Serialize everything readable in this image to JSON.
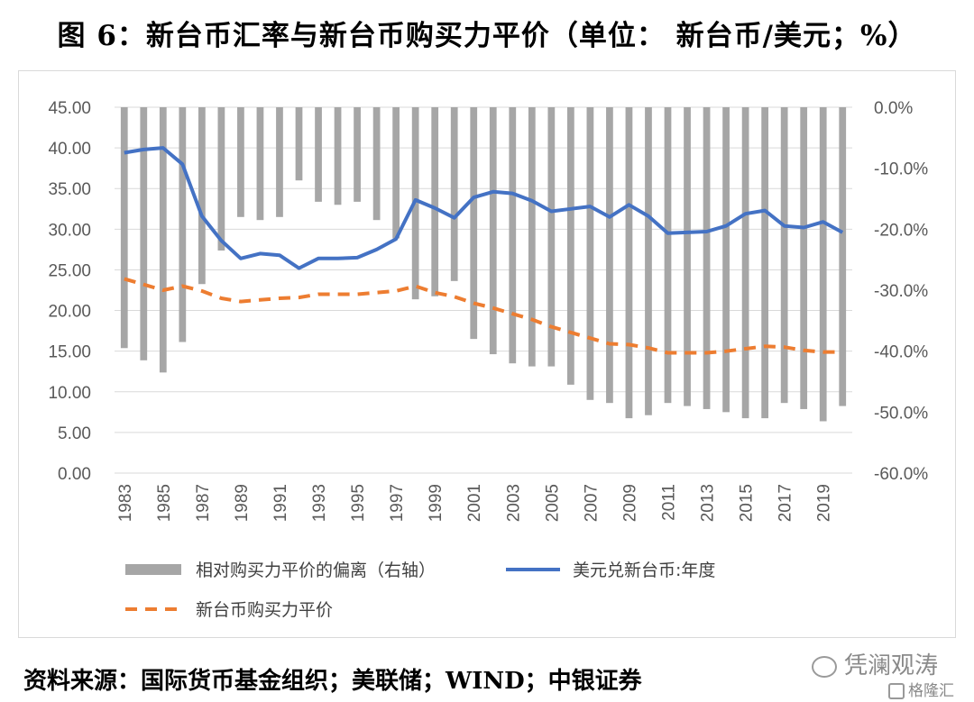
{
  "figure_title": "图 6：新台币汇率与新台币购买力平价（单位： 新台币/美元；%）",
  "source_note": "资料来源：国际货币基金组织；美联储；WIND；中银证券",
  "watermark": {
    "text": "凭澜观涛",
    "icon": "wechat-icon"
  },
  "logo": {
    "text": "格隆汇",
    "icon": "logo-icon"
  },
  "colors": {
    "bars": "#a6a6a6",
    "exchange_rate": "#4472c4",
    "ppp": "#ed7d31",
    "grid": "#d9d9d9",
    "tick_text": "#595959"
  },
  "chart_data": {
    "type": "bar+line",
    "title": "新台币汇率与新台币购买力平价",
    "x": [
      1983,
      1984,
      1985,
      1986,
      1987,
      1988,
      1989,
      1990,
      1991,
      1992,
      1993,
      1994,
      1995,
      1996,
      1997,
      1998,
      1999,
      2000,
      2001,
      2002,
      2003,
      2004,
      2005,
      2006,
      2007,
      2008,
      2009,
      2010,
      2011,
      2012,
      2013,
      2014,
      2015,
      2016,
      2017,
      2018,
      2019,
      2020
    ],
    "x_tick_labels": [
      "1983",
      "1985",
      "1987",
      "1989",
      "1991",
      "1993",
      "1995",
      "1997",
      "1999",
      "2001",
      "2003",
      "2005",
      "2007",
      "2009",
      "2011",
      "2013",
      "2015",
      "2017",
      "2019"
    ],
    "y_left": {
      "range": [
        0,
        45
      ],
      "ticks": [
        "0.00",
        "5.00",
        "10.00",
        "15.00",
        "20.00",
        "25.00",
        "30.00",
        "35.00",
        "40.00",
        "45.00"
      ]
    },
    "y_right": {
      "range": [
        -60,
        0
      ],
      "unit": "%",
      "ticks": [
        "-60.0%",
        "-50.0%",
        "-40.0%",
        "-30.0%",
        "-20.0%",
        "-10.0%",
        "0.0%"
      ]
    },
    "grid": true,
    "legend_position": "bottom",
    "series": [
      {
        "name": "相对购买力平价的偏离（右轴）",
        "type": "bar",
        "axis": "right",
        "values": [
          -39.5,
          -41.5,
          -43.5,
          -38.5,
          -29,
          -23.5,
          -18,
          -18.5,
          -18,
          -12,
          -15.5,
          -16,
          -15.5,
          -18.5,
          -21.5,
          -31.5,
          -31,
          -28.5,
          -38,
          -40.5,
          -42,
          -42.5,
          -42.5,
          -45.5,
          -48,
          -48.5,
          -51,
          -50.5,
          -48.5,
          -49,
          -49.5,
          -50,
          -51,
          -51,
          -48.5,
          -49.5,
          -51.5,
          -49
        ]
      },
      {
        "name": "美元兑新台币:年度",
        "type": "line",
        "axis": "left",
        "values": [
          39.4,
          39.8,
          40.0,
          38.0,
          31.6,
          28.6,
          26.4,
          27.0,
          26.8,
          25.2,
          26.4,
          26.4,
          26.5,
          27.5,
          28.8,
          33.6,
          32.6,
          31.4,
          33.9,
          34.6,
          34.4,
          33.5,
          32.2,
          32.5,
          32.8,
          31.5,
          33.0,
          31.6,
          29.5,
          29.6,
          29.7,
          30.4,
          31.9,
          32.3,
          30.4,
          30.2,
          30.9,
          29.6
        ]
      },
      {
        "name": "新台币购买力平价",
        "type": "line",
        "style": "dashed",
        "axis": "left",
        "values": [
          23.9,
          23.2,
          22.5,
          23.0,
          22.4,
          21.5,
          21.1,
          21.3,
          21.5,
          21.6,
          22.0,
          22.0,
          22.0,
          22.2,
          22.4,
          23.0,
          22.2,
          21.7,
          20.9,
          20.3,
          19.6,
          18.9,
          18.0,
          17.3,
          16.6,
          15.9,
          15.8,
          15.4,
          14.8,
          14.8,
          14.8,
          15.0,
          15.3,
          15.6,
          15.5,
          15.1,
          14.9,
          14.9
        ]
      }
    ]
  }
}
